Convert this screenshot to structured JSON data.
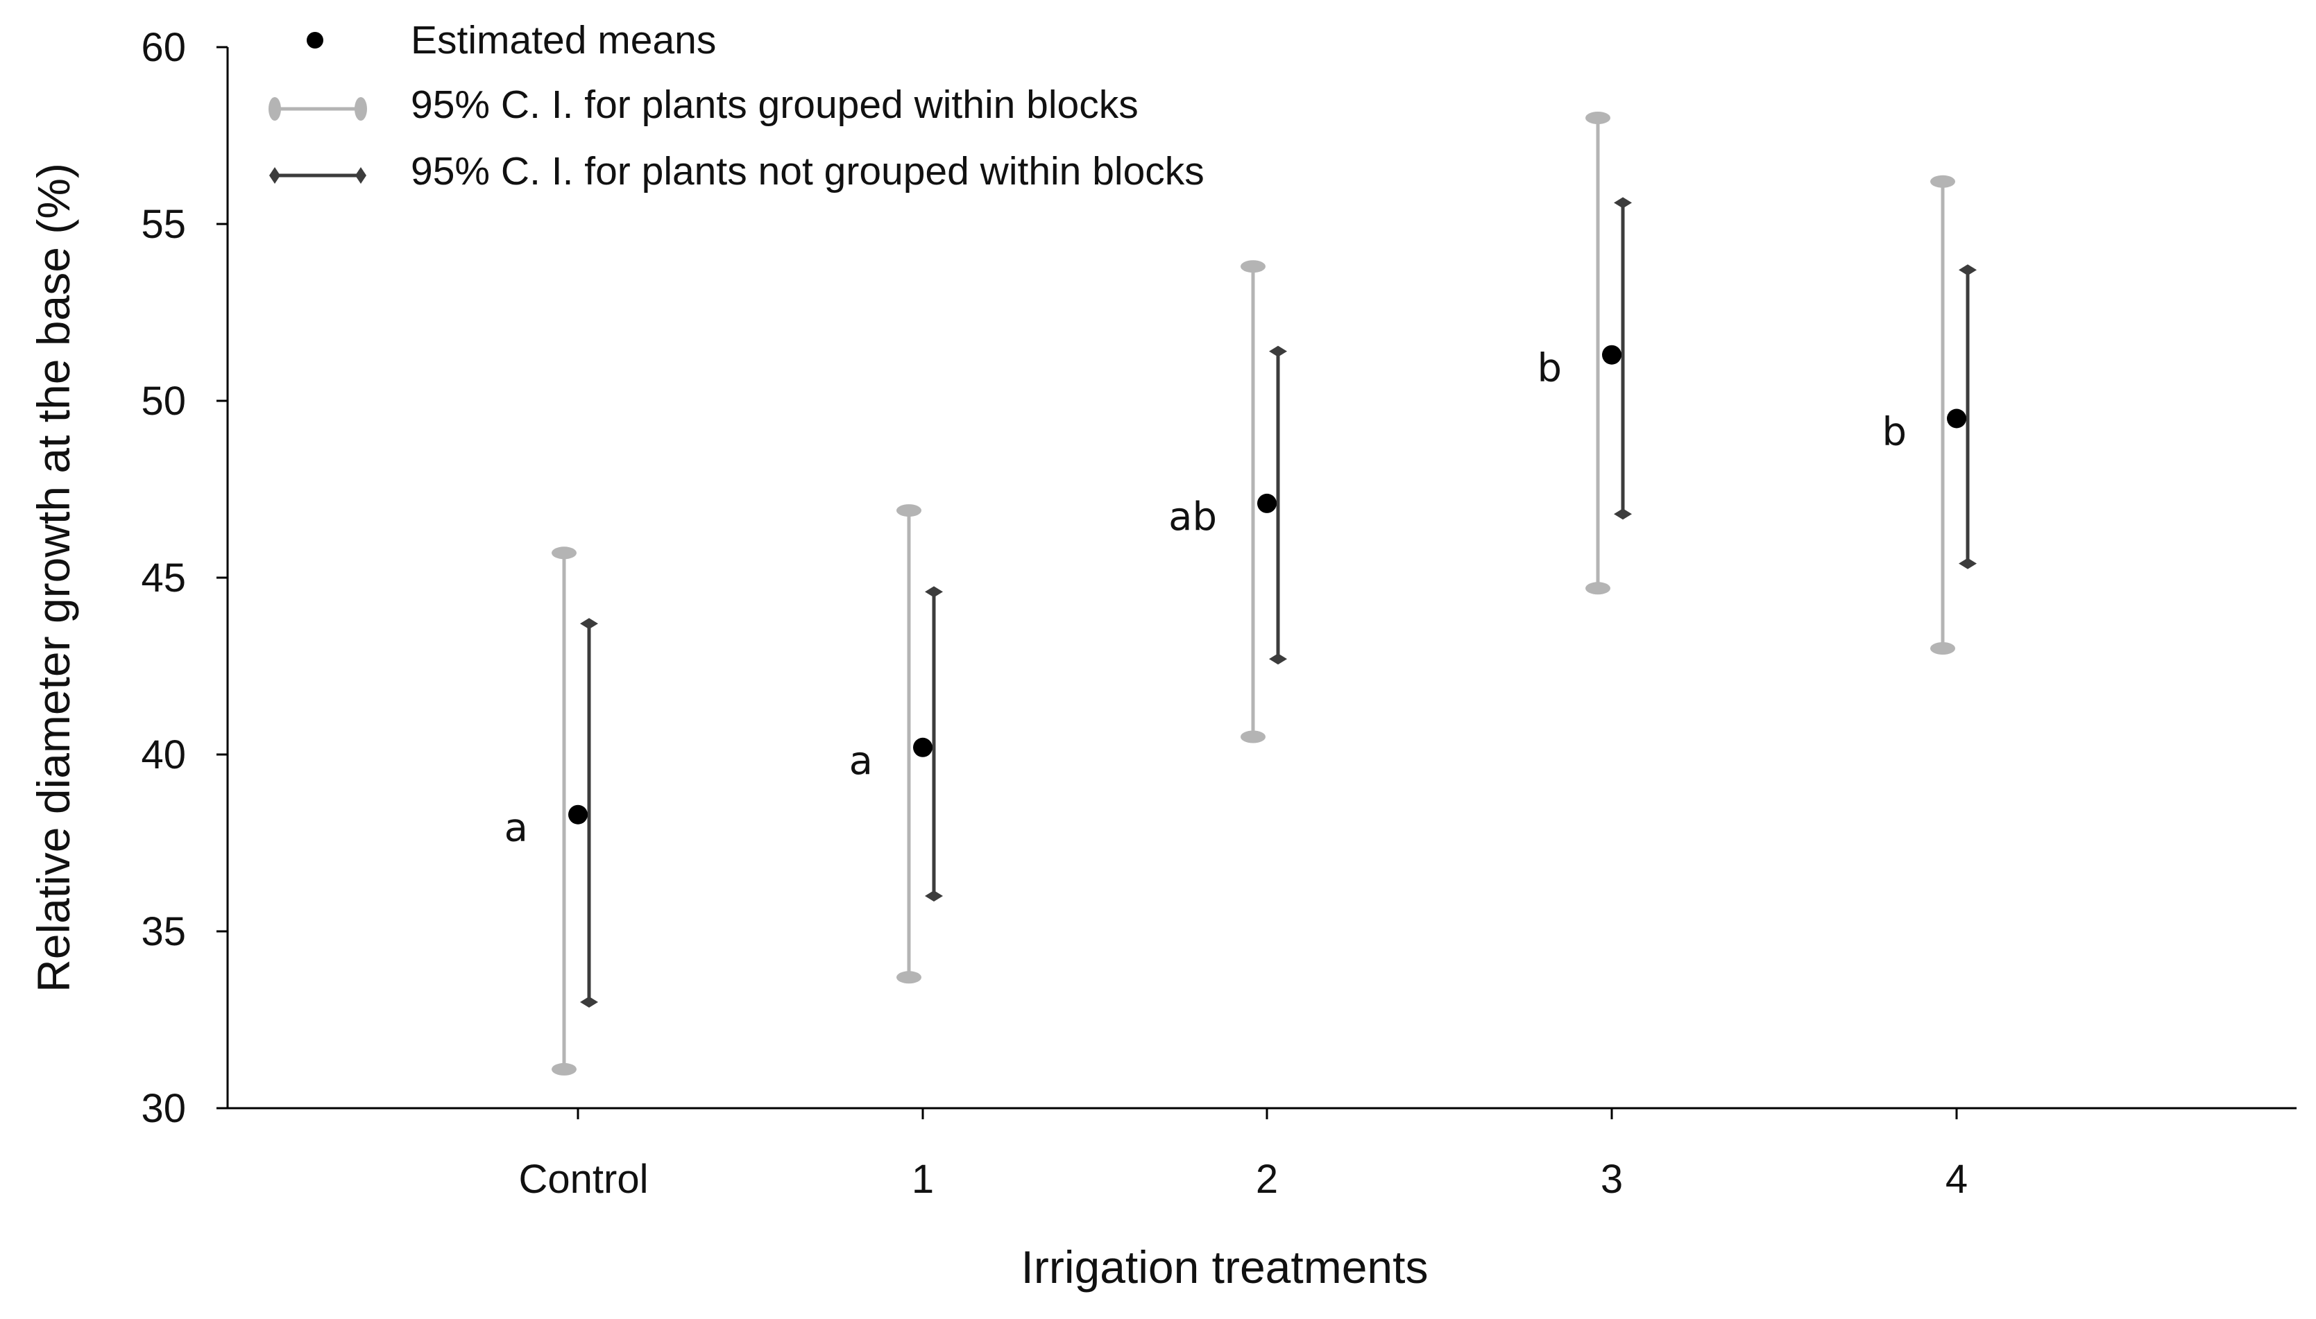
{
  "chart_data": {
    "type": "scatter",
    "title": "",
    "xlabel": "Irrigation treatments",
    "ylabel": "Relative diameter growth at the base (%)",
    "ylim": [
      30,
      60
    ],
    "yticks": [
      30,
      35,
      40,
      45,
      50,
      55,
      60
    ],
    "categories": [
      "Control",
      "1",
      "2",
      "3",
      "4"
    ],
    "grid": false,
    "legend": {
      "placement": "top-left",
      "entries": [
        {
          "key": "means",
          "label": "Estimated means",
          "color": "#000000"
        },
        {
          "key": "grouped",
          "label": "95% C. I. for plants grouped within blocks",
          "color": "#b4b4b4"
        },
        {
          "key": "not_grouped",
          "label": "95% C. I. for plants not grouped within blocks",
          "color": "#3c3c3c"
        }
      ]
    },
    "means": [
      38.3,
      40.2,
      47.1,
      51.3,
      49.5
    ],
    "ci_grouped": {
      "lower": [
        31.1,
        33.7,
        40.5,
        44.7,
        43.0
      ],
      "upper": [
        45.7,
        46.9,
        53.8,
        58.0,
        56.2
      ]
    },
    "ci_not_grouped": {
      "lower": [
        33.0,
        36.0,
        42.7,
        46.8,
        45.4
      ],
      "upper": [
        43.7,
        44.6,
        51.4,
        55.6,
        53.7
      ]
    },
    "significance_letters": [
      "a",
      "a",
      "ab",
      "b",
      "b"
    ]
  }
}
